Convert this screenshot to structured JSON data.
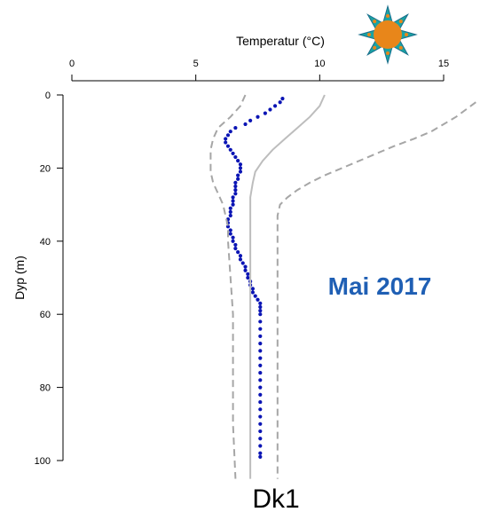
{
  "chart_data": {
    "type": "line",
    "xlabel": "Temperatur (°C)",
    "ylabel": "Dyp (m)",
    "xlim": [
      0,
      15
    ],
    "ylim": [
      0,
      100
    ],
    "y_inverted": true,
    "x_axis_position": "top",
    "x_ticks": [
      0,
      5,
      10,
      15
    ],
    "y_ticks": [
      0,
      20,
      40,
      60,
      80,
      100
    ],
    "grid": false,
    "annotations": {
      "month": "Mai 2017",
      "station": "Dk1"
    },
    "colors": {
      "observed": "#0a14b4",
      "mean": "#bdbdbd",
      "range": "#a6a6a6",
      "month_text": "#1f5fb4",
      "sun": "#e8861a",
      "sun_rays": "#1aa3a3"
    },
    "icons": [
      "sun-icon"
    ],
    "series": [
      {
        "style": "dotted",
        "depth": [
          1,
          2,
          3,
          4,
          5,
          6,
          7,
          8,
          9,
          10,
          11,
          12,
          13,
          14,
          15,
          16,
          17,
          18,
          19,
          20,
          21,
          22,
          23,
          24,
          25,
          26,
          27,
          28,
          29,
          30,
          31,
          32,
          33,
          34,
          35,
          36,
          37,
          38,
          39,
          40,
          41,
          42,
          43,
          44,
          45,
          46,
          47,
          48,
          49,
          50,
          51,
          52,
          53,
          54,
          55,
          56,
          57,
          58,
          59,
          60,
          62,
          64,
          66,
          68,
          70,
          72,
          74,
          76,
          78,
          80,
          82,
          84,
          86,
          88,
          90,
          92,
          94,
          96,
          98,
          99
        ],
        "temperature": [
          8.5,
          8.4,
          8.2,
          8.0,
          7.8,
          7.5,
          7.2,
          7.0,
          6.6,
          6.4,
          6.3,
          6.2,
          6.2,
          6.3,
          6.4,
          6.5,
          6.6,
          6.7,
          6.8,
          6.8,
          6.8,
          6.7,
          6.7,
          6.6,
          6.6,
          6.6,
          6.6,
          6.5,
          6.5,
          6.5,
          6.4,
          6.4,
          6.4,
          6.3,
          6.3,
          6.3,
          6.4,
          6.4,
          6.5,
          6.5,
          6.6,
          6.6,
          6.7,
          6.8,
          6.8,
          6.9,
          7.0,
          7.0,
          7.1,
          7.1,
          7.2,
          7.2,
          7.3,
          7.3,
          7.4,
          7.5,
          7.6,
          7.6,
          7.6,
          7.6,
          7.6,
          7.6,
          7.6,
          7.6,
          7.6,
          7.6,
          7.6,
          7.6,
          7.6,
          7.6,
          7.6,
          7.6,
          7.6,
          7.6,
          7.6,
          7.6,
          7.6,
          7.6,
          7.6,
          7.6
        ]
      },
      {
        "style": "solid",
        "depth": [
          0,
          3,
          6,
          9,
          12,
          15,
          18,
          21,
          24,
          28,
          35,
          45,
          55,
          70,
          85,
          100,
          105
        ],
        "temperature": [
          10.2,
          10.0,
          9.6,
          9.1,
          8.6,
          8.1,
          7.7,
          7.4,
          7.3,
          7.2,
          7.2,
          7.2,
          7.2,
          7.2,
          7.2,
          7.2,
          7.2
        ]
      },
      {
        "style": "dashed",
        "depth": [
          0,
          3,
          6,
          9,
          12,
          15,
          18,
          21,
          24,
          27,
          30,
          33,
          36,
          40,
          50,
          60,
          75,
          90,
          105
        ],
        "temperature": [
          7.0,
          6.8,
          6.4,
          5.9,
          5.7,
          5.6,
          5.6,
          5.6,
          5.7,
          5.9,
          6.1,
          6.2,
          6.3,
          6.3,
          6.4,
          6.5,
          6.5,
          6.5,
          6.6
        ]
      },
      {
        "style": "dashed",
        "depth": [
          2,
          4,
          6,
          8,
          10,
          12,
          14,
          16,
          18,
          20,
          22,
          24,
          26,
          28,
          30,
          33,
          36,
          45,
          60,
          75,
          90,
          105
        ],
        "temperature": [
          16.3,
          15.9,
          15.5,
          15.0,
          14.5,
          13.8,
          13.0,
          12.3,
          11.6,
          10.9,
          10.2,
          9.6,
          9.1,
          8.7,
          8.4,
          8.3,
          8.3,
          8.3,
          8.3,
          8.3,
          8.3,
          8.3
        ]
      }
    ]
  }
}
